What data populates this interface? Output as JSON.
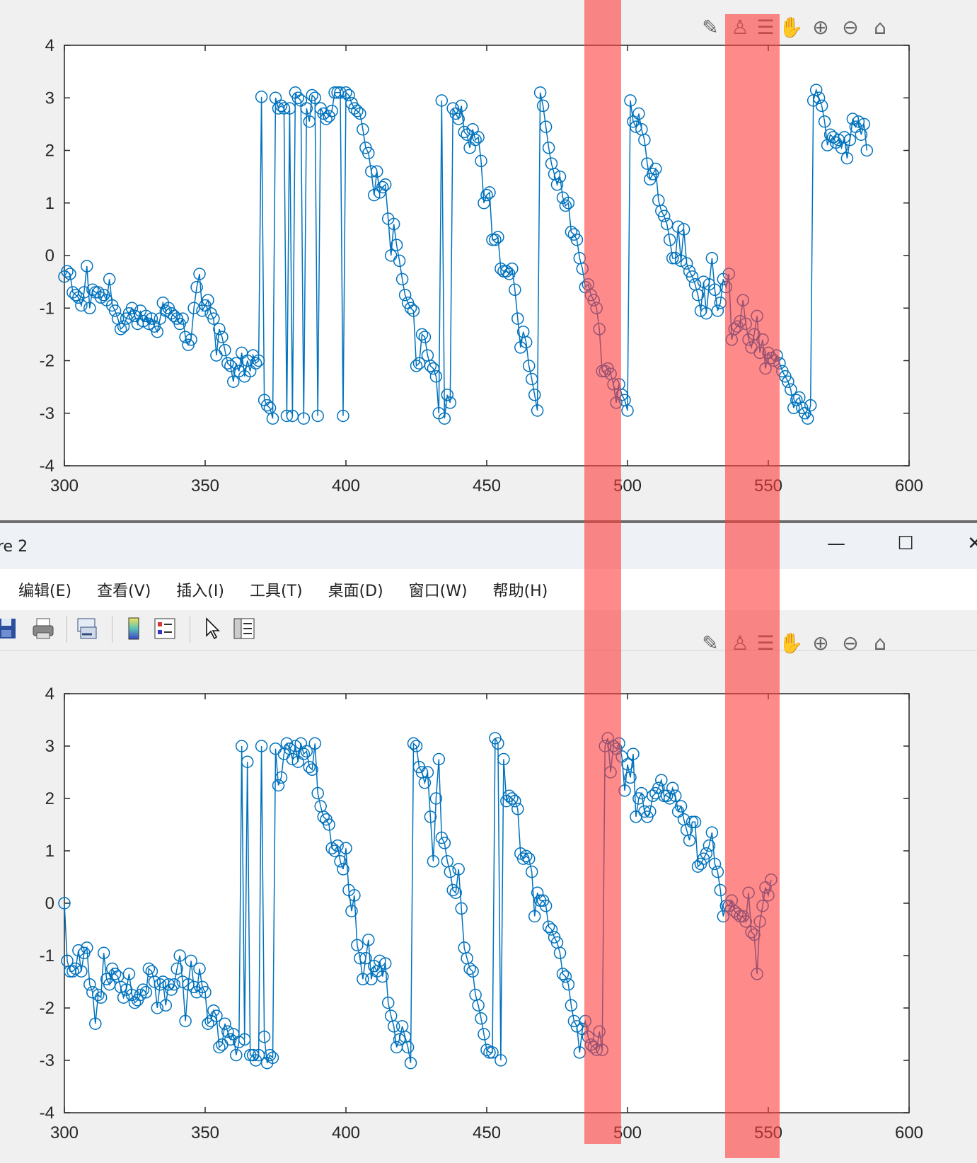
{
  "window": {
    "title": "re 2",
    "controls": [
      "—",
      "☐",
      "✕"
    ]
  },
  "menu": {
    "items": [
      "编辑(E)",
      "查看(V)",
      "插入(I)",
      "工具(T)",
      "桌面(D)",
      "窗口(W)",
      "帮助(H)"
    ]
  },
  "toolbar": {
    "icons": [
      "save-icon",
      "print-icon",
      "link-axes-icon",
      "colorbar-icon",
      "legend-icon",
      "pointer-icon",
      "property-inspector-icon"
    ]
  },
  "axes_toolbar": {
    "icons": [
      "edit-plot-icon",
      "brush-icon",
      "data-tip-icon",
      "pan-icon",
      "zoom-in-icon",
      "zoom-out-icon",
      "home-icon"
    ]
  },
  "colors": {
    "line": "#0072BD",
    "highlight": "#ff3c3c"
  },
  "chart_data": [
    {
      "type": "line",
      "marker": "circle",
      "xlim": [
        300,
        600
      ],
      "ylim": [
        -4,
        4
      ],
      "xticks": [
        "300",
        "350",
        "400",
        "450",
        "500",
        "550",
        "600"
      ],
      "yticks": [
        "4",
        "3",
        "2",
        "1",
        "0",
        "-1",
        "-2",
        "-3",
        "-4"
      ],
      "x_start": 300,
      "values": [
        -0.4,
        -0.3,
        -0.35,
        -0.7,
        -0.75,
        -0.8,
        -0.95,
        -0.7,
        -0.2,
        -1.0,
        -0.65,
        -0.7,
        -0.7,
        -0.8,
        -0.75,
        -0.85,
        -0.45,
        -0.95,
        -1.05,
        -1.2,
        -1.4,
        -1.35,
        -1.2,
        -1.1,
        -1.0,
        -1.15,
        -1.3,
        -1.05,
        -1.25,
        -1.15,
        -1.3,
        -1.2,
        -1.35,
        -1.45,
        -1.2,
        -0.9,
        -1.05,
        -1.0,
        -1.1,
        -1.15,
        -1.2,
        -1.3,
        -1.2,
        -1.55,
        -1.7,
        -1.6,
        -1.0,
        -0.6,
        -0.35,
        -1.05,
        -0.95,
        -0.85,
        -1.1,
        -1.2,
        -1.9,
        -1.4,
        -1.55,
        -1.8,
        -2.05,
        -2.1,
        -2.4,
        -2.05,
        -2.2,
        -1.85,
        -2.3,
        -2.0,
        -2.2,
        -1.9,
        -2.05,
        -2.0,
        3.02,
        -2.75,
        -2.85,
        -2.9,
        -3.1,
        3.0,
        2.8,
        2.85,
        2.8,
        -3.05,
        2.8,
        -3.05,
        3.1,
        3.0,
        2.95,
        -3.1,
        2.8,
        2.55,
        3.05,
        3.0,
        -3.05,
        2.8,
        2.7,
        2.6,
        2.65,
        2.75,
        3.1,
        3.1,
        3.1,
        -3.05,
        3.1,
        3.05,
        2.9,
        2.8,
        2.75,
        2.7,
        2.4,
        2.05,
        1.95,
        1.6,
        1.15,
        1.6,
        1.2,
        1.3,
        1.35,
        0.7,
        0.0,
        0.6,
        0.2,
        -0.1,
        -0.45,
        -0.75,
        -0.9,
        -1.0,
        -1.05,
        -2.1,
        -2.05,
        -1.5,
        -1.55,
        -1.9,
        -2.1,
        -2.15,
        -2.3,
        -3.0,
        2.95,
        -3.1,
        -2.65,
        -2.8,
        2.8,
        2.7,
        2.6,
        2.85,
        2.35,
        2.3,
        2.05,
        2.4,
        2.2,
        2.25,
        1.8,
        1.0,
        1.15,
        1.2,
        0.3,
        0.3,
        0.35,
        -0.25,
        -0.3,
        -0.3,
        -0.35,
        -0.25,
        -0.65,
        -1.2,
        -1.75,
        -1.45,
        -1.65,
        -2.1,
        -2.35,
        -2.65,
        -2.95,
        3.1,
        2.85,
        2.45,
        2.05,
        1.75,
        1.55,
        1.35,
        1.5,
        1.1,
        0.95,
        1.0,
        0.45,
        0.4,
        0.3,
        -0.05,
        -0.25,
        -0.6,
        -0.55,
        -0.75,
        -0.85,
        -1.0,
        -1.4,
        -2.2,
        -2.2,
        -2.15,
        -2.25,
        -2.45,
        -2.8,
        -2.45,
        -2.65,
        -2.75,
        -2.95,
        2.95,
        2.55,
        2.45,
        2.7,
        2.4,
        2.2,
        1.75,
        1.45,
        1.55,
        1.65,
        1.05,
        0.85,
        0.75,
        0.6,
        0.3,
        -0.05,
        -0.05,
        0.55,
        -0.1,
        0.5,
        -0.15,
        -0.3,
        -0.4,
        -0.55,
        -0.75,
        -1.05,
        -0.5,
        -1.1,
        -0.55,
        -0.05,
        -0.65,
        -1.05,
        -0.9,
        -0.45,
        -0.6,
        -0.35,
        -1.6,
        -1.4,
        -1.35,
        -1.25,
        -0.85,
        -1.3,
        -1.6,
        -1.75,
        -1.5,
        -1.15,
        -1.85,
        -1.6,
        -2.15,
        -1.85,
        -1.95,
        -2.0,
        -1.9,
        -2.05,
        -2.2,
        -2.3,
        -2.4,
        -2.55,
        -2.9,
        -2.75,
        -2.7,
        -2.9,
        -3.0,
        -3.1,
        -2.85,
        2.95,
        3.15,
        3.0,
        2.85,
        2.55,
        2.1,
        2.3,
        2.25,
        2.15,
        2.2,
        2.05,
        2.25,
        1.85,
        2.2,
        2.6,
        2.45,
        2.55,
        2.3,
        2.5,
        2.0
      ]
    },
    {
      "type": "line",
      "marker": "circle",
      "xlim": [
        300,
        600
      ],
      "ylim": [
        -4,
        4
      ],
      "xticks": [
        "300",
        "350",
        "400",
        "450",
        "500",
        "550",
        "600"
      ],
      "yticks": [
        "4",
        "3",
        "2",
        "1",
        "0",
        "-1",
        "-2",
        "-3",
        "-4"
      ],
      "x_start": 300,
      "values": [
        0.0,
        -1.1,
        -1.3,
        -1.3,
        -1.25,
        -0.9,
        -1.3,
        -0.95,
        -0.85,
        -1.55,
        -1.7,
        -2.3,
        -1.75,
        -1.8,
        -0.95,
        -1.45,
        -1.55,
        -1.25,
        -1.35,
        -1.4,
        -1.6,
        -1.8,
        -1.65,
        -1.35,
        -1.75,
        -1.9,
        -1.85,
        -1.75,
        -1.65,
        -1.7,
        -1.25,
        -1.3,
        -1.5,
        -2.0,
        -1.55,
        -1.5,
        -1.95,
        -1.55,
        -1.65,
        -1.55,
        -1.25,
        -1.0,
        -1.5,
        -2.25,
        -1.55,
        -1.1,
        -1.6,
        -1.7,
        -1.25,
        -1.6,
        -1.7,
        -2.3,
        -2.25,
        -2.05,
        -2.15,
        -2.75,
        -2.7,
        -2.3,
        -2.45,
        -2.6,
        -2.5,
        -2.9,
        -2.65,
        3.0,
        -2.6,
        2.7,
        -2.9,
        -2.9,
        -3.0,
        -2.9,
        3.0,
        -2.55,
        -3.05,
        -2.9,
        -2.95,
        2.95,
        2.25,
        2.4,
        2.85,
        3.05,
        2.95,
        2.75,
        3.0,
        2.7,
        3.05,
        2.85,
        2.9,
        2.6,
        2.55,
        3.05,
        2.1,
        1.85,
        1.65,
        1.6,
        1.5,
        1.05,
        1.0,
        1.1,
        0.8,
        0.65,
        1.05,
        0.25,
        -0.15,
        0.15,
        -0.8,
        -1.05,
        -1.45,
        -1.05,
        -0.7,
        -1.45,
        -1.2,
        -1.3,
        -1.1,
        -1.4,
        -1.15,
        -1.9,
        -2.15,
        -2.35,
        -2.75,
        -2.6,
        -2.35,
        -2.55,
        -2.75,
        -3.05,
        3.05,
        3.0,
        2.6,
        2.5,
        2.3,
        2.5,
        1.65,
        0.8,
        2.0,
        2.75,
        1.25,
        1.15,
        0.8,
        0.6,
        0.25,
        0.2,
        0.65,
        -0.1,
        -0.85,
        -1.05,
        -1.25,
        -1.3,
        -1.75,
        -1.95,
        -2.2,
        -2.5,
        -2.8,
        -2.85,
        -2.85,
        3.15,
        3.05,
        -3.0,
        2.75,
        1.95,
        2.05,
        2.0,
        1.95,
        1.8,
        0.95,
        0.85,
        0.9,
        0.85,
        0.6,
        -0.25,
        0.2,
        0.05,
        0.05,
        -0.05,
        -0.45,
        -0.5,
        -0.65,
        -0.75,
        -0.95,
        -1.35,
        -1.4,
        -1.55,
        -1.95,
        -2.25,
        -2.35,
        -2.85,
        -2.4,
        -2.25,
        -2.55,
        -2.7,
        -2.75,
        -2.8,
        -2.45,
        -2.8,
        3.0,
        3.15,
        2.5,
        3.0,
        2.95,
        3.05,
        2.8,
        2.15,
        2.65,
        2.4,
        2.85,
        1.65,
        2.0,
        2.1,
        1.75,
        1.65,
        1.75,
        2.05,
        2.1,
        2.2,
        2.35,
        2.05,
        2.05,
        2.0,
        2.2,
        2.05,
        1.75,
        1.85,
        1.6,
        1.4,
        1.2,
        1.55,
        1.55,
        0.7,
        0.75,
        0.85,
        0.95,
        1.1,
        1.35,
        0.75,
        0.6,
        0.25,
        -0.25,
        -0.05,
        -0.05,
        0.05,
        -0.15,
        -0.2,
        -0.25,
        -0.25,
        -0.35,
        0.2,
        -0.55,
        -0.6,
        -1.35,
        -0.35,
        -0.05,
        0.3,
        0.15,
        0.45
      ]
    }
  ]
}
